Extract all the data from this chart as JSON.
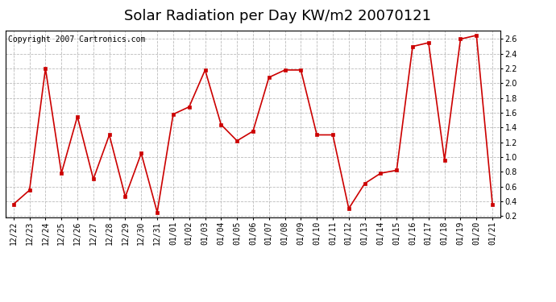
{
  "title": "Solar Radiation per Day KW/m2 20070121",
  "copyright": "Copyright 2007 Cartronics.com",
  "labels": [
    "12/22",
    "12/23",
    "12/24",
    "12/25",
    "12/26",
    "12/27",
    "12/28",
    "12/29",
    "12/30",
    "12/31",
    "01/01",
    "01/02",
    "01/03",
    "01/04",
    "01/05",
    "01/06",
    "01/07",
    "01/08",
    "01/09",
    "01/10",
    "01/11",
    "01/12",
    "01/13",
    "01/14",
    "01/15",
    "01/16",
    "01/17",
    "01/18",
    "01/19",
    "01/20",
    "01/21"
  ],
  "values": [
    0.36,
    0.55,
    2.2,
    0.78,
    1.55,
    0.7,
    1.3,
    0.46,
    1.05,
    0.25,
    1.58,
    1.68,
    2.18,
    1.44,
    1.22,
    1.35,
    2.08,
    2.18,
    2.18,
    1.3,
    1.3,
    0.3,
    0.64,
    0.78,
    0.82,
    2.5,
    2.55,
    0.96,
    2.6,
    2.65,
    0.36
  ],
  "line_color": "#cc0000",
  "marker": "s",
  "marker_size": 3,
  "bg_color": "#ffffff",
  "plot_bg_color": "#ffffff",
  "grid_color": "#bbbbbb",
  "ylim": [
    0.18,
    2.72
  ],
  "yticks": [
    0.2,
    0.4,
    0.6,
    0.8,
    1.0,
    1.2,
    1.4,
    1.6,
    1.8,
    2.0,
    2.2,
    2.4,
    2.6
  ],
  "title_fontsize": 13,
  "copyright_fontsize": 7,
  "tick_fontsize": 7
}
